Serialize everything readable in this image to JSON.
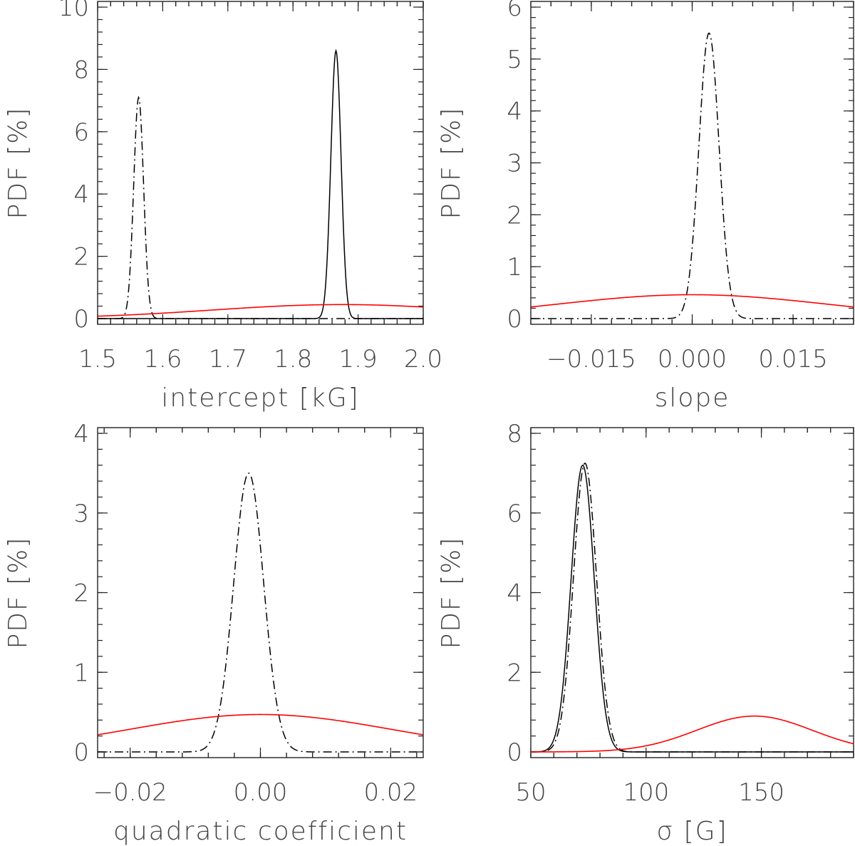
{
  "figure": {
    "colors": {
      "solid": "#000000",
      "dashdot": "#000000",
      "prior": "#ff0000",
      "frame": "#222222",
      "text": "#444444"
    }
  },
  "chart_data": [
    {
      "type": "line",
      "xlabel": "intercept [kG]",
      "ylabel": "PDF [%]",
      "xlim": [
        1.5,
        2.0
      ],
      "ylim": [
        0,
        10
      ],
      "x_ticks": [
        1.5,
        1.6,
        1.7,
        1.8,
        1.9,
        2.0
      ],
      "x_tick_labels": [
        "1.5",
        "1.6",
        "1.7",
        "1.8",
        "1.9",
        "2.0"
      ],
      "y_ticks": [
        0,
        2,
        4,
        6,
        8,
        10
      ],
      "y_tick_labels": [
        "0",
        "2",
        "4",
        "6",
        "8",
        "10"
      ],
      "series": [
        {
          "style": "solid",
          "color": "#000000",
          "shape": "gaussian",
          "mu": 1.866,
          "sigma": 0.0078,
          "peak": 8.6
        },
        {
          "style": "dashdot",
          "color": "#000000",
          "shape": "gaussian",
          "mu": 1.563,
          "sigma": 0.0076,
          "peak": 7.1
        },
        {
          "style": "solid",
          "color": "#ff0000",
          "shape": "gaussian",
          "mu": 1.875,
          "sigma": 0.2,
          "peak": 0.45
        }
      ]
    },
    {
      "type": "line",
      "xlabel": "slope",
      "ylabel": "PDF [%]",
      "xlim": [
        -0.024,
        0.024
      ],
      "ylim": [
        0,
        6
      ],
      "x_ticks": [
        -0.015,
        0.0,
        0.015
      ],
      "x_tick_labels": [
        "−0.015",
        "0.000",
        "0.015"
      ],
      "y_ticks": [
        0,
        1,
        2,
        3,
        4,
        5,
        6
      ],
      "y_tick_labels": [
        "0",
        "1",
        "2",
        "3",
        "4",
        "5",
        "6"
      ],
      "series": [
        {
          "style": "dashdot",
          "color": "#000000",
          "shape": "gaussian",
          "mu": 0.0025,
          "sigma": 0.0015,
          "peak": 5.5
        },
        {
          "style": "solid",
          "color": "#ff0000",
          "shape": "gaussian",
          "mu": 0.0,
          "sigma": 0.02,
          "peak": 0.46
        }
      ]
    },
    {
      "type": "line",
      "xlabel": "quadratic coefficient",
      "ylabel": "PDF [%]",
      "xlim": [
        -0.025,
        0.025
      ],
      "ylim": [
        0,
        4
      ],
      "x_ticks": [
        -0.02,
        0.0,
        0.02
      ],
      "x_tick_labels": [
        "−0.02",
        "0.00",
        "0.02"
      ],
      "y_ticks": [
        0,
        1,
        2,
        3,
        4
      ],
      "y_tick_labels": [
        "0",
        "1",
        "2",
        "3",
        "4"
      ],
      "series": [
        {
          "style": "dashdot",
          "color": "#000000",
          "shape": "gaussian",
          "mu": -0.0018,
          "sigma": 0.0023,
          "peak": 3.5
        },
        {
          "style": "solid",
          "color": "#ff0000",
          "shape": "gaussian",
          "mu": 0.0,
          "sigma": 0.02,
          "peak": 0.47
        }
      ]
    },
    {
      "type": "line",
      "xlabel": "σ [G]",
      "ylabel": "PDF [%]",
      "xlim": [
        50,
        190
      ],
      "ylim": [
        0,
        8
      ],
      "x_ticks": [
        50,
        100,
        150
      ],
      "x_tick_labels": [
        "50",
        "100",
        "150"
      ],
      "y_ticks": [
        0,
        2,
        4,
        6,
        8
      ],
      "y_tick_labels": [
        "0",
        "2",
        "4",
        "6",
        "8"
      ],
      "series": [
        {
          "style": "solid",
          "color": "#000000",
          "shape": "gaussian",
          "mu": 72.5,
          "sigma": 5.0,
          "peak": 7.2
        },
        {
          "style": "dashdot",
          "color": "#000000",
          "shape": "gaussian",
          "mu": 73.5,
          "sigma": 5.0,
          "peak": 7.25
        },
        {
          "style": "solid",
          "color": "#ff0000",
          "shape": "gaussian",
          "mu": 147,
          "sigma": 25,
          "peak": 0.9
        }
      ]
    }
  ]
}
